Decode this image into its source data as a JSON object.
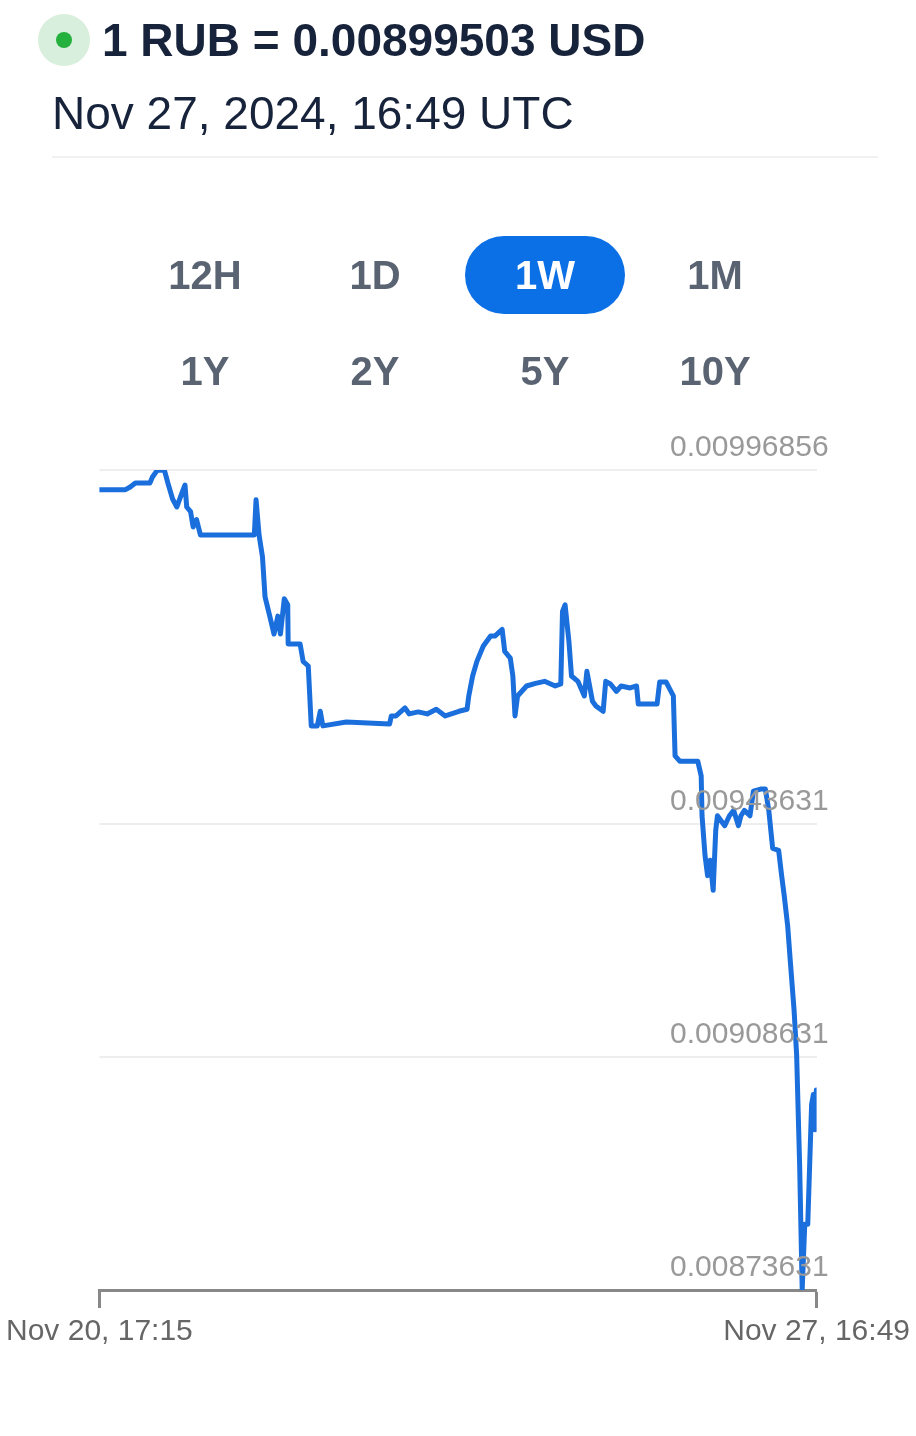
{
  "chart_data": {
    "type": "line",
    "title": "1 RUB = 0.00899503 USD",
    "subtitle": "Nov 27, 2024, 16:49 UTC",
    "annotations": [
      "12H",
      "1D",
      "1W",
      "1M",
      "1Y",
      "2Y",
      "5Y",
      "10Y"
    ],
    "x": [
      "2024-11-20T17:15",
      "2024-11-20T23:21",
      "2024-11-21T00:27",
      "2024-11-21T01:39",
      "2024-11-21T05:03",
      "2024-11-21T05:39",
      "2024-11-21T06:45",
      "2024-11-21T08:27",
      "2024-11-21T09:15",
      "2024-11-21T10:21",
      "2024-11-21T11:21",
      "2024-11-21T12:39",
      "2024-11-21T13:15",
      "2024-11-21T13:39",
      "2024-11-21T14:33",
      "2024-11-21T15:09",
      "2024-11-21T15:57",
      "2024-11-21T16:51",
      "2024-11-22T05:27",
      "2024-11-22T05:51",
      "2024-11-22T06:33",
      "2024-11-22T07:21",
      "2024-11-22T07:57",
      "2024-11-22T09:03",
      "2024-11-22T10:03",
      "2024-11-22T10:57",
      "2024-11-22T11:33",
      "2024-11-22T12:27",
      "2024-11-22T13:15",
      "2024-11-22T13:21",
      "2024-11-22T16:09",
      "2024-11-22T16:51",
      "2024-11-22T18:03",
      "2024-11-22T18:45",
      "2024-11-22T20:09",
      "2024-11-22T20:51",
      "2024-11-22T21:27",
      "2024-11-23T02:57",
      "2024-11-23T13:03",
      "2024-11-23T13:27",
      "2024-11-23T14:33",
      "2024-11-23T16:39",
      "2024-11-23T17:39",
      "2024-11-23T19:45",
      "2024-11-23T21:51",
      "2024-11-23T23:57",
      "2024-11-24T02:03",
      "2024-11-24T05:15",
      "2024-11-24T07:09",
      "2024-11-24T07:33",
      "2024-11-24T08:27",
      "2024-11-24T09:27",
      "2024-11-24T10:57",
      "2024-11-24T12:39",
      "2024-11-24T13:39",
      "2024-11-24T15:21",
      "2024-11-24T15:57",
      "2024-11-24T17:15",
      "2024-11-24T17:51",
      "2024-11-24T18:21",
      "2024-11-24T18:57",
      "2024-11-24T21:03",
      "2024-11-24T23:09",
      "2024-11-25T01:15",
      "2024-11-25T03:45",
      "2024-11-25T05:03",
      "2024-11-25T05:27",
      "2024-11-25T06:03",
      "2024-11-25T06:57",
      "2024-11-25T07:33",
      "2024-11-25T09:03",
      "2024-11-25T10:33",
      "2024-11-25T11:09",
      "2024-11-25T12:27",
      "2024-11-25T13:15",
      "2024-11-25T14:57",
      "2024-11-25T15:33",
      "2024-11-25T16:39",
      "2024-11-25T18:03",
      "2024-11-25T19:09",
      "2024-11-25T21:15",
      "2024-11-25T22:45",
      "2024-11-25T23:09",
      "2024-11-26T03:33",
      "2024-11-26T04:09",
      "2024-11-26T05:39",
      "2024-11-26T06:33",
      "2024-11-26T07:21",
      "2024-11-26T07:45",
      "2024-11-26T08:51",
      "2024-11-26T13:03",
      "2024-11-26T13:51",
      "2024-11-26T14:03",
      "2024-11-26T14:45",
      "2024-11-26T15:21",
      "2024-11-26T15:57",
      "2024-11-26T16:39",
      "2024-11-26T17:15",
      "2024-11-26T17:39",
      "2024-11-26T19:21",
      "2024-11-26T20:27",
      "2024-11-26T21:27",
      "2024-11-26T22:33",
      "2024-11-26T23:09",
      "2024-11-26T23:57",
      "2024-11-27T01:15",
      "2024-11-27T02:03",
      "2024-11-27T03:45",
      "2024-11-27T04:51",
      "2024-11-27T05:39",
      "2024-11-27T06:33",
      "2024-11-27T07:57",
      "2024-11-27T08:39",
      "2024-11-27T09:15",
      "2024-11-27T10:03",
      "2024-11-27T10:45",
      "2024-11-27T11:33",
      "2024-11-27T12:09",
      "2024-11-27T12:51",
      "2024-11-27T13:27",
      "2024-11-27T14:03",
      "2024-11-27T14:45",
      "2024-11-27T15:39",
      "2024-11-27T16:03",
      "2024-11-27T16:27",
      "2024-11-27T16:45"
    ],
    "series": [
      {
        "color": "#1a6fdc",
        "values": [
          0.009939,
          0.009939,
          0.009943,
          0.009949,
          0.009949,
          0.009958,
          0.009968,
          0.009968,
          0.009949,
          0.009925,
          0.009913,
          0.009936,
          0.009946,
          0.009913,
          0.009906,
          0.009883,
          0.009894,
          0.009871,
          0.009871,
          0.009924,
          0.009871,
          0.009838,
          0.009778,
          0.009749,
          0.009722,
          0.009749,
          0.009722,
          0.009775,
          0.009766,
          0.009707,
          0.009707,
          0.009681,
          0.009674,
          0.009584,
          0.009584,
          0.009606,
          0.009584,
          0.00959,
          0.009587,
          0.009599,
          0.009599,
          0.009611,
          0.009602,
          0.009605,
          0.009602,
          0.009609,
          0.009599,
          0.009606,
          0.009609,
          0.009629,
          0.009659,
          0.009681,
          0.009704,
          0.009719,
          0.009719,
          0.009729,
          0.009696,
          0.009686,
          0.009659,
          0.009599,
          0.009629,
          0.009644,
          0.009648,
          0.009651,
          0.009644,
          0.009647,
          0.009756,
          0.009766,
          0.009711,
          0.009659,
          0.009651,
          0.009629,
          0.009666,
          0.009621,
          0.009614,
          0.009606,
          0.009651,
          0.009647,
          0.009636,
          0.009644,
          0.009641,
          0.009644,
          0.009617,
          0.009617,
          0.00965,
          0.00965,
          0.009639,
          0.009629,
          0.009539,
          0.009531,
          0.009531,
          0.009509,
          0.009449,
          0.009389,
          0.009359,
          0.009382,
          0.009337,
          0.009427,
          0.009449,
          0.009434,
          0.009449,
          0.009457,
          0.009434,
          0.009449,
          0.009457,
          0.009449,
          0.009486,
          0.009489,
          0.009489,
          0.009457,
          0.0094,
          0.009397,
          0.009359,
          0.009329,
          0.009284,
          0.009224,
          0.009157,
          0.00909,
          0.008925,
          0.008737,
          0.008835,
          0.008835,
          0.009015,
          0.00903,
          0.008977,
          0.009037
        ]
      }
    ],
    "xlim": [
      "2024-11-20T17:15",
      "2024-11-27T16:49"
    ],
    "xticks": [
      {
        "value": "2024-11-20T17:15",
        "label": "Nov 20, 17:15"
      },
      {
        "value": "2024-11-27T16:49",
        "label": "Nov 27, 16:49"
      }
    ],
    "ylim": [
      0.00873631,
      0.00996856
    ],
    "yticks": [
      0.00873631,
      0.00908631,
      0.00943631,
      0.00996856
    ],
    "grid": "y",
    "legend": false,
    "marker": "none",
    "line_style": "solid"
  }
}
